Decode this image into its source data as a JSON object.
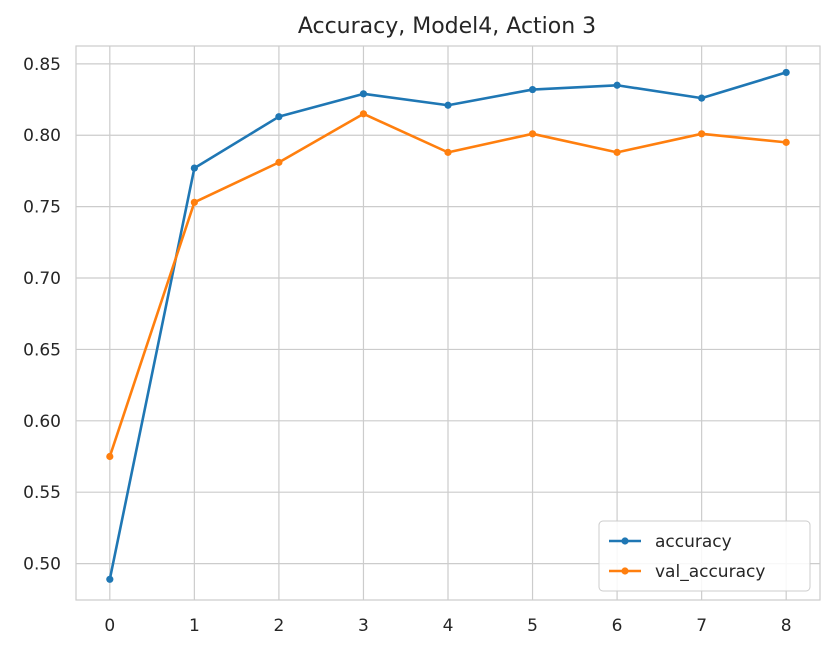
{
  "chart_data": {
    "type": "line",
    "title": "Accuracy, Model4, Action 3",
    "xlabel": "",
    "ylabel": "",
    "x": [
      0,
      1,
      2,
      3,
      4,
      5,
      6,
      7,
      8
    ],
    "x_ticks": [
      "0",
      "1",
      "2",
      "3",
      "4",
      "5",
      "6",
      "7",
      "8"
    ],
    "y_ticks": [
      "0.50",
      "0.55",
      "0.60",
      "0.65",
      "0.70",
      "0.75",
      "0.80",
      "0.85"
    ],
    "xlim": [
      -0.4,
      8.4
    ],
    "ylim": [
      0.4745,
      0.8625
    ],
    "grid": true,
    "legend_position": "lower-right",
    "series": [
      {
        "name": "accuracy",
        "color": "#1f77b4",
        "values": [
          0.489,
          0.777,
          0.813,
          0.829,
          0.821,
          0.832,
          0.835,
          0.826,
          0.844
        ]
      },
      {
        "name": "val_accuracy",
        "color": "#ff7f0e",
        "values": [
          0.575,
          0.753,
          0.781,
          0.815,
          0.788,
          0.801,
          0.788,
          0.801,
          0.795
        ]
      }
    ]
  }
}
